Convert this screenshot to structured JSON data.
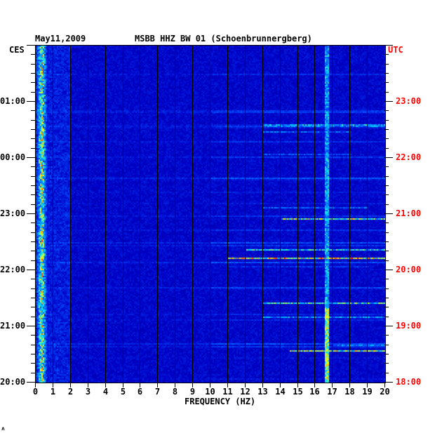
{
  "header": {
    "date": "May11,2009",
    "station": "MSBB HHZ BW 01 (Schoenbrunnergberg)",
    "left_zone": "CES",
    "right_zone": "UTC"
  },
  "footer_mark": "ʌ",
  "chart_data": {
    "type": "heatmap",
    "title": "MSBB HHZ BW 01 (Schoenbrunnergberg)",
    "xlabel": "FREQUENCY (HZ)",
    "xlim": [
      0,
      20
    ],
    "x_ticks": [
      "0",
      "1",
      "2",
      "3",
      "4",
      "5",
      "6",
      "7",
      "8",
      "9",
      "10",
      "11",
      "12",
      "13",
      "14",
      "15",
      "16",
      "17",
      "18",
      "19",
      "20"
    ],
    "y_duration_minutes": 360,
    "y_ticks_left": [
      {
        "label": "01:00",
        "minute": 60
      },
      {
        "label": "00:00",
        "minute": 120
      },
      {
        "label": "23:00",
        "minute": 180
      },
      {
        "label": "22:00",
        "minute": 240
      },
      {
        "label": "21:00",
        "minute": 300
      },
      {
        "label": "20:00",
        "minute": 360
      }
    ],
    "y_ticks_right": [
      {
        "label": "23:00",
        "minute": 60
      },
      {
        "label": "22:00",
        "minute": 120
      },
      {
        "label": "21:00",
        "minute": 180
      },
      {
        "label": "20:00",
        "minute": 240
      },
      {
        "label": "19:00",
        "minute": 300
      },
      {
        "label": "18:00",
        "minute": 360
      }
    ],
    "minor_tick_minutes": 10,
    "grid": true,
    "colormap": [
      "#00007a",
      "#0000c8",
      "#0050ff",
      "#00e0ff",
      "#ffff00",
      "#ff0000"
    ],
    "features": [
      {
        "kind": "band",
        "minute": 84,
        "fmin": 13,
        "fmax": 20,
        "level": 0.65
      },
      {
        "kind": "band",
        "minute": 86,
        "fmin": 13,
        "fmax": 20,
        "level": 0.55
      },
      {
        "kind": "band",
        "minute": 91,
        "fmin": 13,
        "fmax": 18,
        "level": 0.5
      },
      {
        "kind": "band",
        "minute": 116,
        "fmin": 13,
        "fmax": 18,
        "level": 0.45
      },
      {
        "kind": "band",
        "minute": 172,
        "fmin": 13,
        "fmax": 19,
        "level": 0.5
      },
      {
        "kind": "band",
        "minute": 184,
        "fmin": 14,
        "fmax": 20,
        "level": 0.85
      },
      {
        "kind": "band",
        "minute": 217,
        "fmin": 12,
        "fmax": 20,
        "level": 0.7
      },
      {
        "kind": "band",
        "minute": 227,
        "fmin": 11,
        "fmax": 20,
        "level": 0.95
      },
      {
        "kind": "band",
        "minute": 236,
        "fmin": 11,
        "fmax": 19,
        "level": 0.4
      },
      {
        "kind": "band",
        "minute": 274,
        "fmin": 13,
        "fmax": 20,
        "level": 0.75
      },
      {
        "kind": "band",
        "minute": 290,
        "fmin": 13,
        "fmax": 20,
        "level": 0.6
      },
      {
        "kind": "band",
        "minute": 320,
        "fmin": 17,
        "fmax": 20,
        "level": 0.55
      },
      {
        "kind": "band",
        "minute": 325,
        "fmin": 14.5,
        "fmax": 20,
        "level": 0.85
      },
      {
        "kind": "line",
        "freq": 16.6,
        "level": 0.6
      },
      {
        "kind": "lowfreq",
        "fmin": 0,
        "fmax": 0.7,
        "level": 0.9
      }
    ]
  }
}
